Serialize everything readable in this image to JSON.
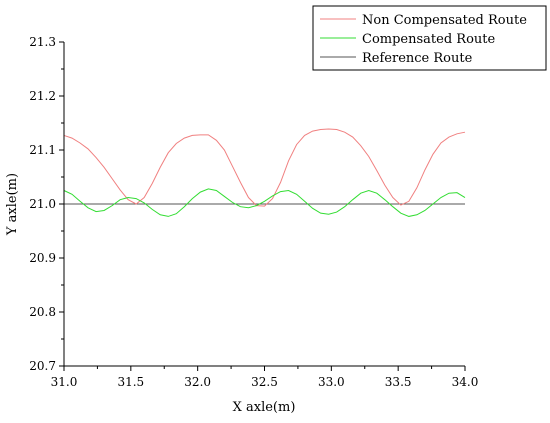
{
  "chart_data": {
    "type": "line",
    "xlabel": "X axle(m)",
    "ylabel": "Y axle(m)",
    "xlim": [
      31.0,
      34.0
    ],
    "ylim": [
      20.7,
      21.3
    ],
    "xticks": [
      "31.0",
      "31.5",
      "32.0",
      "32.5",
      "33.0",
      "33.5",
      "34.0"
    ],
    "yticks": [
      "20.7",
      "20.8",
      "20.9",
      "21.0",
      "21.1",
      "21.2",
      "21.3"
    ],
    "grid": false,
    "legend_position": "top-right",
    "series": [
      {
        "name": "Non Compensated Route",
        "color": "#f08080",
        "x": [
          31.0,
          31.06,
          31.12,
          31.18,
          31.24,
          31.3,
          31.36,
          31.42,
          31.48,
          31.54,
          31.6,
          31.66,
          31.72,
          31.78,
          31.84,
          31.9,
          31.96,
          32.02,
          32.08,
          32.14,
          32.2,
          32.26,
          32.32,
          32.38,
          32.44,
          32.5,
          32.56,
          32.62,
          32.68,
          32.74,
          32.8,
          32.86,
          32.92,
          32.98,
          33.04,
          33.1,
          33.16,
          33.22,
          33.28,
          33.34,
          33.4,
          33.46,
          33.52,
          33.58,
          33.64,
          33.7,
          33.76,
          33.82,
          33.88,
          33.94,
          34.0
        ],
        "y": [
          21.127,
          21.122,
          21.113,
          21.102,
          21.086,
          21.068,
          21.047,
          21.026,
          21.008,
          21.0,
          21.012,
          21.038,
          21.068,
          21.095,
          21.112,
          21.122,
          21.127,
          21.128,
          21.128,
          21.118,
          21.1,
          21.07,
          21.04,
          21.012,
          20.997,
          20.996,
          21.01,
          21.04,
          21.08,
          21.11,
          21.127,
          21.135,
          21.138,
          21.139,
          21.138,
          21.133,
          21.124,
          21.108,
          21.088,
          21.062,
          21.035,
          21.012,
          20.998,
          21.005,
          21.03,
          21.063,
          21.092,
          21.113,
          21.124,
          21.13,
          21.133
        ]
      },
      {
        "name": "Compensated Route",
        "color": "#33dd33",
        "x": [
          31.0,
          31.06,
          31.12,
          31.18,
          31.24,
          31.3,
          31.36,
          31.42,
          31.48,
          31.54,
          31.6,
          31.66,
          31.72,
          31.78,
          31.84,
          31.9,
          31.96,
          32.02,
          32.08,
          32.14,
          32.2,
          32.26,
          32.32,
          32.38,
          32.44,
          32.5,
          32.56,
          32.62,
          32.68,
          32.74,
          32.8,
          32.86,
          32.92,
          32.98,
          33.04,
          33.1,
          33.16,
          33.22,
          33.28,
          33.34,
          33.4,
          33.46,
          33.52,
          33.58,
          33.64,
          33.7,
          33.76,
          33.82,
          33.88,
          33.94,
          34.0
        ],
        "y": [
          21.025,
          21.018,
          21.005,
          20.993,
          20.986,
          20.988,
          20.997,
          21.008,
          21.012,
          21.01,
          21.002,
          20.99,
          20.98,
          20.977,
          20.982,
          20.995,
          21.01,
          21.022,
          21.028,
          21.025,
          21.014,
          21.003,
          20.995,
          20.993,
          20.997,
          21.005,
          21.015,
          21.023,
          21.025,
          21.018,
          21.005,
          20.992,
          20.983,
          20.981,
          20.985,
          20.995,
          21.008,
          21.02,
          21.025,
          21.02,
          21.008,
          20.995,
          20.983,
          20.977,
          20.98,
          20.988,
          21.0,
          21.012,
          21.02,
          21.021,
          21.012
        ]
      },
      {
        "name": "Reference Route",
        "color": "#555555",
        "x": [
          31.0,
          34.0
        ],
        "y": [
          21.0,
          21.0
        ]
      }
    ]
  }
}
